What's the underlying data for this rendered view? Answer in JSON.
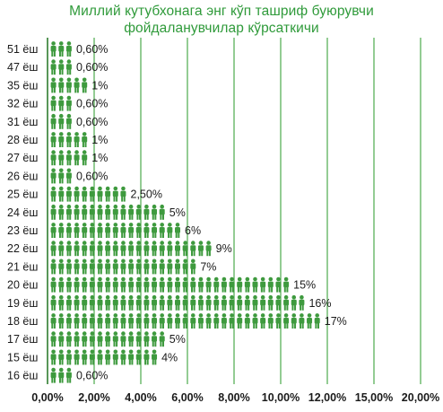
{
  "chart_data": {
    "type": "bar",
    "orientation": "horizontal",
    "title": "Миллий кутубхонага энг кўп ташриф буюрувчи фойдаланувчилар кўрсаткичи",
    "title_lines": [
      "Миллий кутубхонага энг кўп ташриф буюрувчи",
      "фойдаланувчилар кўрсаткичи"
    ],
    "categories": [
      "51 ёш",
      "47 ёш",
      "35 ёш",
      "32 ёш",
      "31 ёш",
      "28 ёш",
      "27 ёш",
      "26 ёш",
      "25 ёш",
      "24 ёш",
      "23 ёш",
      "22 ёш",
      "21 ёш",
      "20 ёш",
      "19 ёш",
      "18 ёш",
      "17 ёш",
      "15 ёш",
      "16 ёш"
    ],
    "values": [
      0.6,
      0.6,
      1,
      0.6,
      0.6,
      1,
      1,
      0.6,
      2.5,
      5,
      6,
      9,
      7,
      15,
      16,
      17,
      5,
      4,
      0.6
    ],
    "value_labels": [
      "0,60%",
      "0,60%",
      "1%",
      "0,60%",
      "0,60%",
      "1%",
      "1%",
      "0,60%",
      "2,50%",
      "5%",
      "6%",
      "9%",
      "7%",
      "15%",
      "16%",
      "17%",
      "5%",
      "4%",
      "0,60%"
    ],
    "person_counts": [
      3,
      3,
      5,
      3,
      3,
      5,
      5,
      3,
      10,
      15,
      17,
      21,
      19,
      31,
      33,
      35,
      15,
      14,
      3
    ],
    "x_ticks": [
      "0,00%",
      "2,00%",
      "4,00%",
      "6,00%",
      "8,00%",
      "10,00%",
      "12,00%",
      "15,00%",
      "20,00%"
    ],
    "grid": true,
    "legend": "none",
    "mark": "pictogram-people",
    "colors": {
      "title": "#2f9a3a",
      "bar": "#3e9a3e",
      "grid": "#4caa4c"
    }
  }
}
